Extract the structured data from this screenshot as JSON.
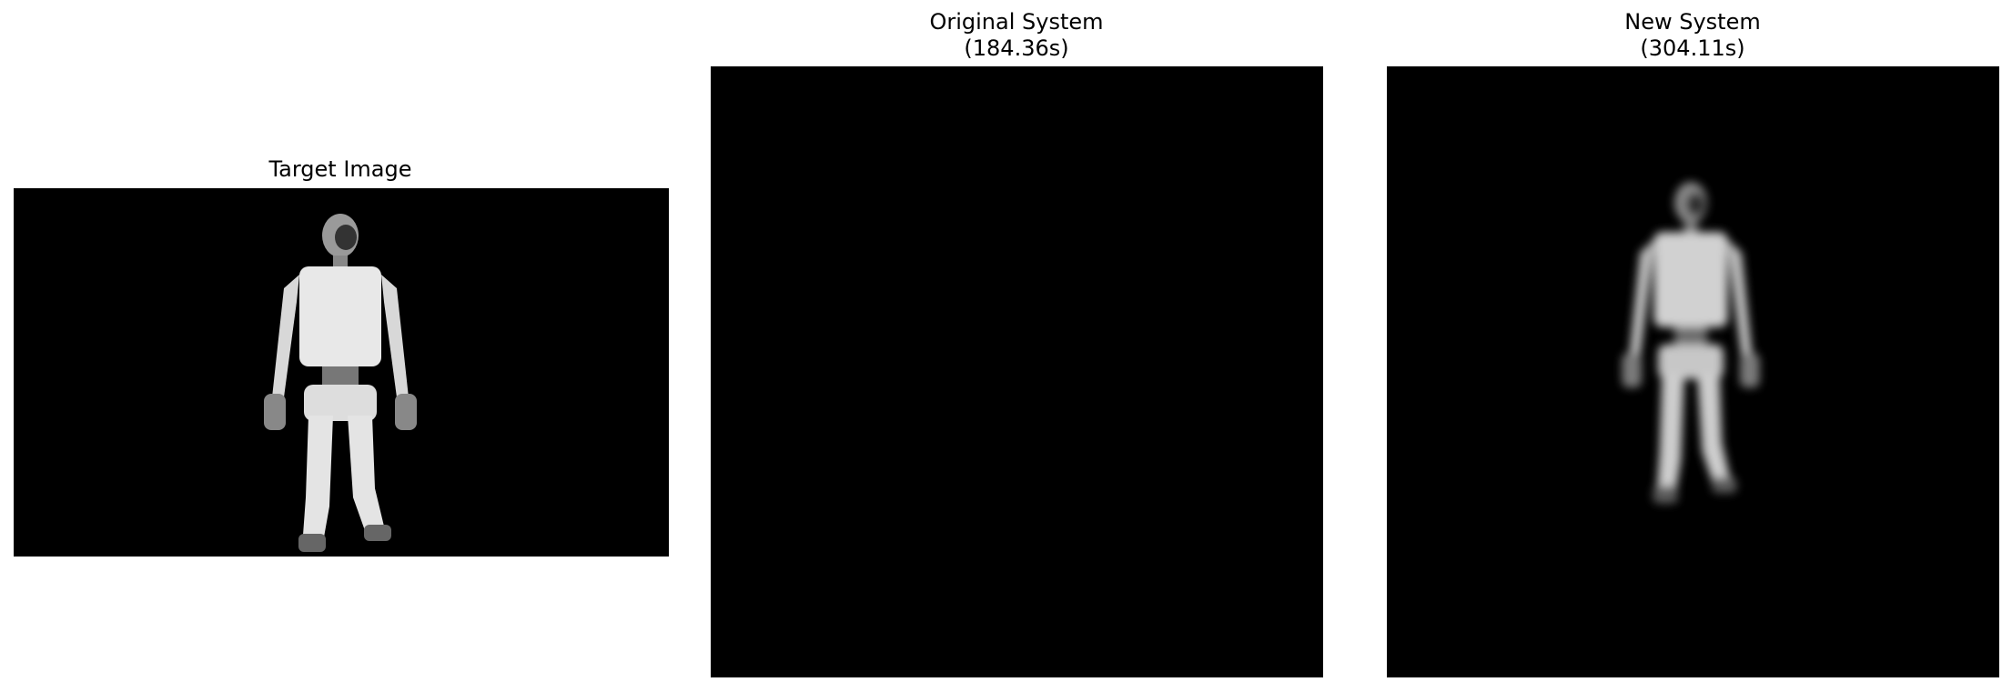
{
  "panels": [
    {
      "title": "Target Image"
    },
    {
      "title": "Original System",
      "subtitle": "(184.36s)"
    },
    {
      "title": "New System",
      "subtitle": "(304.11s)"
    }
  ]
}
